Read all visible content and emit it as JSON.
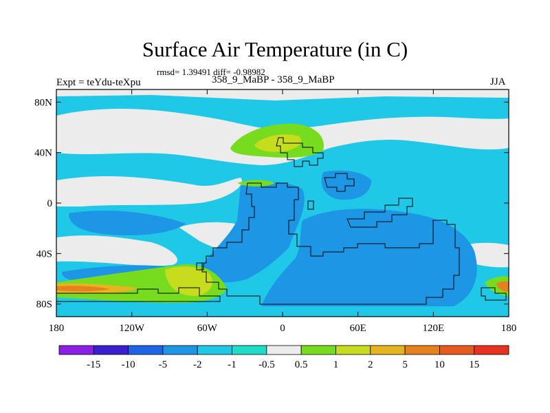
{
  "title": "Surface Air Temperature (in C)",
  "stats": "rmsd= 1.39491 diff= -0.98982",
  "case_label": "358_9_MaBP - 358_9_MaBP",
  "expt_label": "Expt = teYdu-teXpu",
  "season": "JJA",
  "map": {
    "lon_range": [
      -180,
      180
    ],
    "lat_range": [
      -90,
      90
    ],
    "x_ticks": [
      {
        "value": -180,
        "label": "180"
      },
      {
        "value": -120,
        "label": "120W"
      },
      {
        "value": -60,
        "label": "60W"
      },
      {
        "value": 0,
        "label": "0"
      },
      {
        "value": 60,
        "label": "60E"
      },
      {
        "value": 120,
        "label": "120E"
      },
      {
        "value": 180,
        "label": "180"
      }
    ],
    "y_ticks": [
      {
        "value": 80,
        "label": "80N"
      },
      {
        "value": 40,
        "label": "40N"
      },
      {
        "value": 0,
        "label": "0"
      },
      {
        "value": -40,
        "label": "40S"
      },
      {
        "value": -80,
        "label": "80S"
      }
    ]
  },
  "colorbar": {
    "colors": [
      "#8c1ee6",
      "#3a1ed2",
      "#1e64e6",
      "#1e96e6",
      "#1ec8e6",
      "#1edcc8",
      "#ececec",
      "#78dc1e",
      "#c8dc1e",
      "#e6b41e",
      "#e6821e",
      "#e65a1e",
      "#e6321e"
    ],
    "labels": [
      "-15",
      "-10",
      "-5",
      "-2",
      "-1",
      "-0.5",
      "0.5",
      "1",
      "2",
      "5",
      "10",
      "15"
    ]
  }
}
